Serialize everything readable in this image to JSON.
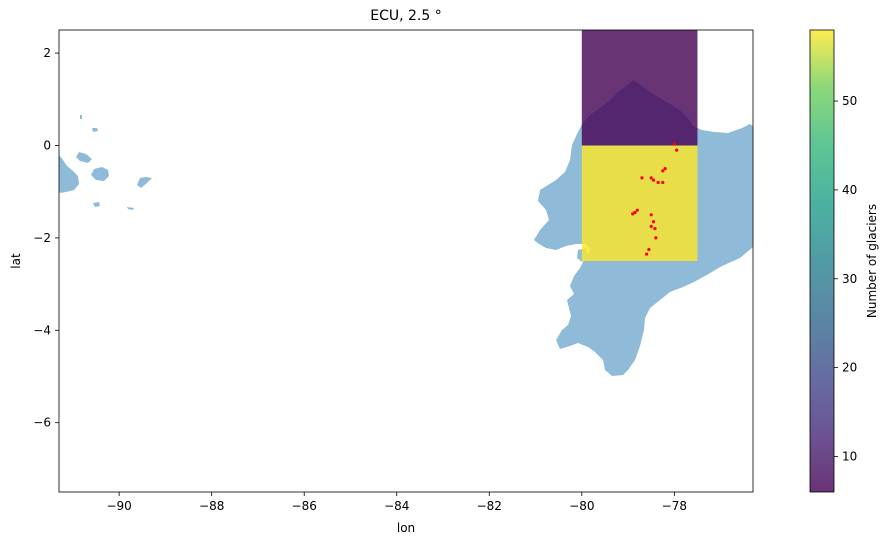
{
  "chart_data": {
    "type": "heatmap",
    "title": "ECU, 2.5 °",
    "xlabel": "lon",
    "ylabel": "lat",
    "xlim": [
      -91.3,
      -76.3
    ],
    "ylim": [
      -7.5,
      2.5
    ],
    "x_ticks": [
      -90,
      -88,
      -86,
      -84,
      -82,
      -80,
      -78
    ],
    "y_ticks": [
      2,
      0,
      -2,
      -4,
      -6
    ],
    "x_tick_labels": [
      "−90",
      "−88",
      "−86",
      "−84",
      "−82",
      "−80",
      "−78"
    ],
    "y_tick_labels": [
      "2",
      "0",
      "−2",
      "−4",
      "−6"
    ],
    "cells": [
      {
        "lon_min": -80,
        "lon_max": -77.5,
        "lat_min": 0,
        "lat_max": 2.5,
        "count": 6
      },
      {
        "lon_min": -80,
        "lon_max": -77.5,
        "lat_min": -2.5,
        "lat_max": 0,
        "count": 58
      }
    ],
    "glaciers": [
      {
        "lon": -78.0,
        "lat": 0.03
      },
      {
        "lon": -77.95,
        "lat": -0.1
      },
      {
        "lon": -78.2,
        "lat": -0.5
      },
      {
        "lon": -78.25,
        "lat": -0.55
      },
      {
        "lon": -78.5,
        "lat": -0.7
      },
      {
        "lon": -78.45,
        "lat": -0.75
      },
      {
        "lon": -78.35,
        "lat": -0.8
      },
      {
        "lon": -78.25,
        "lat": -0.8
      },
      {
        "lon": -78.7,
        "lat": -0.7
      },
      {
        "lon": -78.8,
        "lat": -1.4
      },
      {
        "lon": -78.85,
        "lat": -1.45
      },
      {
        "lon": -78.9,
        "lat": -1.48
      },
      {
        "lon": -78.5,
        "lat": -1.5
      },
      {
        "lon": -78.45,
        "lat": -1.65
      },
      {
        "lon": -78.5,
        "lat": -1.75
      },
      {
        "lon": -78.42,
        "lat": -1.8
      },
      {
        "lon": -78.4,
        "lat": -2.0
      },
      {
        "lon": -78.55,
        "lat": -2.25
      },
      {
        "lon": -78.6,
        "lat": -2.35
      }
    ],
    "colorbar": {
      "label": "Number of glaciers",
      "min": 6,
      "max": 58,
      "ticks": [
        10,
        20,
        30,
        40,
        50
      ],
      "colormap": "viridis",
      "alpha": 0.8
    },
    "colors": {
      "land": "#8fbbd9",
      "glacier": "#ff0000"
    }
  }
}
